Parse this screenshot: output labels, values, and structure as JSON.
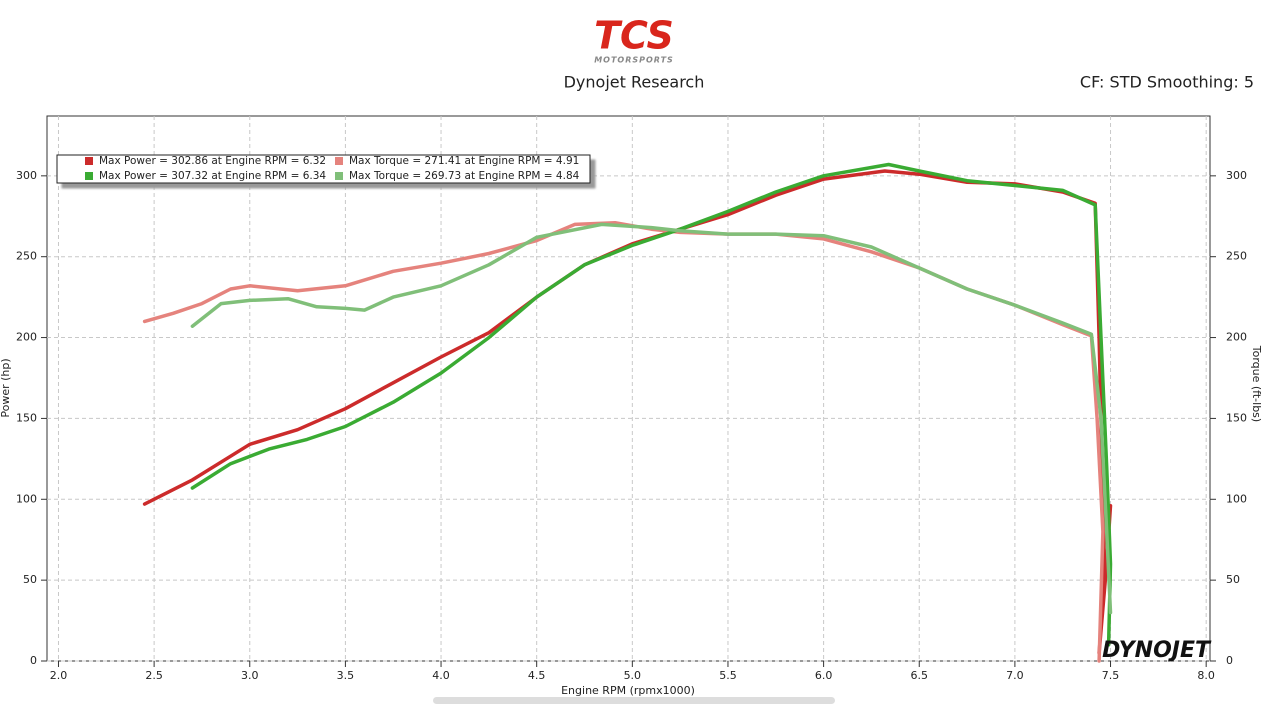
{
  "chart_data": {
    "type": "line",
    "logo": {
      "text": "TCS",
      "subtext": "MOTORSPORTS"
    },
    "title": "Dynojet Research",
    "annotation": "CF: STD Smoothing: 5",
    "watermark": "DYNOJET",
    "x_label": "Engine RPM (rpmx1000)",
    "y_label": "Power (hp)",
    "y2_label": "Torque (ft-lbs)",
    "xlim": [
      1.94,
      8.02
    ],
    "xticks": [
      {
        "value": 2,
        "label": "2.0"
      },
      2.5,
      {
        "value": 3,
        "label": "3.0"
      },
      3.5,
      {
        "value": 4,
        "label": "4.0"
      },
      4.5,
      {
        "value": 5,
        "label": "5.0"
      },
      5.5,
      {
        "value": 6,
        "label": "6.0"
      },
      6.5,
      {
        "value": 7,
        "label": "7.0"
      },
      7.5,
      {
        "value": 8,
        "label": "8.0"
      }
    ],
    "ylim": [
      0,
      337
    ],
    "yticks": [
      0,
      50,
      100,
      150,
      200,
      250,
      300
    ],
    "y2lim": [
      0,
      337
    ],
    "y2ticks": [
      0,
      50,
      100,
      150,
      200,
      250,
      300
    ],
    "grid": true,
    "legend": "top-left",
    "series": [
      {
        "name": "Max Power = 302.86 at Engine RPM = 6.32",
        "color": "#cc2b2b",
        "x": [
          2.45,
          2.7,
          3.0,
          3.25,
          3.5,
          3.75,
          4.0,
          4.25,
          4.5,
          4.75,
          5.0,
          5.25,
          5.5,
          5.75,
          6.0,
          6.32,
          6.5,
          6.75,
          7.0,
          7.25,
          7.42,
          7.44,
          7.46,
          7.47,
          7.44,
          7.48,
          7.5
        ],
        "values": [
          97,
          112,
          134,
          143,
          156,
          172,
          188,
          203,
          225,
          245,
          258,
          267,
          276,
          288,
          298,
          303,
          301,
          296,
          295,
          290,
          283,
          200,
          100,
          50,
          5,
          60,
          96
        ]
      },
      {
        "name": "Max Torque = 271.41 at Engine RPM = 4.91",
        "color": "#e5837d",
        "axis": "y2",
        "x": [
          2.45,
          2.6,
          2.75,
          2.9,
          3.0,
          3.25,
          3.5,
          3.75,
          4.0,
          4.25,
          4.5,
          4.7,
          4.91,
          5.1,
          5.25,
          5.5,
          5.75,
          6.0,
          6.25,
          6.5,
          6.75,
          7.0,
          7.25,
          7.4,
          7.43,
          7.46,
          7.44
        ],
        "values": [
          210,
          215,
          221,
          230,
          232,
          229,
          232,
          241,
          246,
          252,
          260,
          270,
          271,
          267,
          265,
          264,
          264,
          261,
          253,
          243,
          230,
          220,
          208,
          201,
          150,
          80,
          0
        ]
      },
      {
        "name": "Max Power = 307.32 at Engine RPM = 6.34",
        "color": "#3aab33",
        "x": [
          2.7,
          2.9,
          3.1,
          3.3,
          3.5,
          3.75,
          4.0,
          4.25,
          4.5,
          4.75,
          5.0,
          5.25,
          5.5,
          5.75,
          6.0,
          6.34,
          6.5,
          6.75,
          7.0,
          7.25,
          7.42,
          7.45,
          7.48,
          7.5,
          7.49
        ],
        "values": [
          107,
          122,
          131,
          137,
          145,
          160,
          178,
          200,
          225,
          245,
          257,
          267,
          278,
          290,
          300,
          307,
          303,
          297,
          294,
          291,
          282,
          200,
          120,
          60,
          10
        ]
      },
      {
        "name": "Max Torque = 269.73 at Engine RPM = 4.84",
        "color": "#80bf79",
        "axis": "y2",
        "x": [
          2.7,
          2.85,
          3.0,
          3.2,
          3.35,
          3.5,
          3.6,
          3.75,
          4.0,
          4.25,
          4.5,
          4.84,
          5.1,
          5.25,
          5.5,
          5.75,
          6.0,
          6.25,
          6.5,
          6.75,
          7.0,
          7.25,
          7.4,
          7.45,
          7.48,
          7.5
        ],
        "values": [
          207,
          221,
          223,
          224,
          219,
          218,
          217,
          225,
          232,
          245,
          262,
          270,
          268,
          266,
          264,
          264,
          263,
          256,
          243,
          230,
          220,
          209,
          202,
          150,
          80,
          30
        ]
      }
    ]
  }
}
